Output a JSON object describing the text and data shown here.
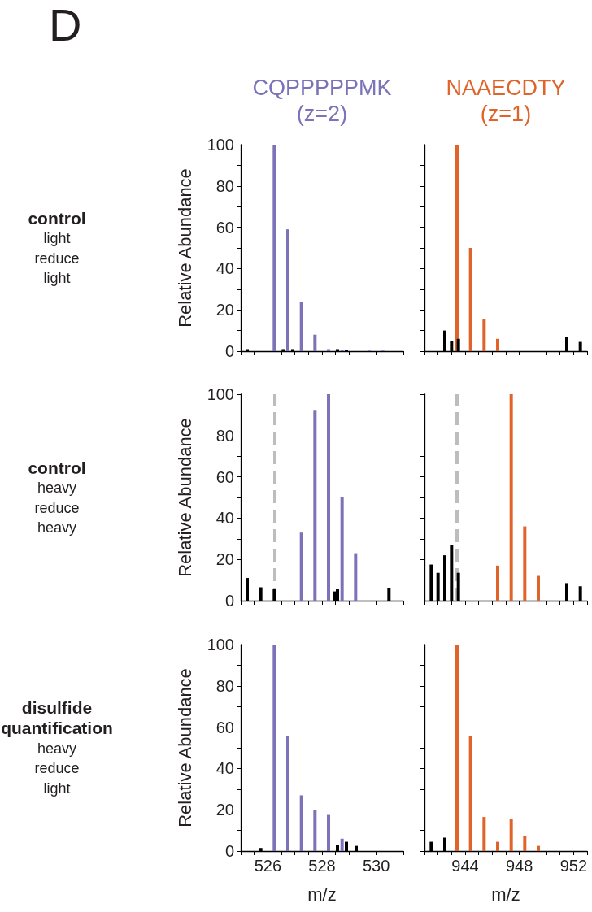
{
  "chart_data": [
    {
      "type": "bar",
      "title": "CQPPPPPMK\n(z=2)",
      "ylabel": "Relative Abundance",
      "annotations": [
        "D",
        "control\nlight\nreduce\nlight"
      ],
      "tick_labels": "y",
      "series": [
        {
          "color": "#7b72b8",
          "x": [
            526.24,
            526.74,
            527.24,
            527.74,
            528.24,
            528.74,
            529.74,
            530.24
          ],
          "values": [
            100,
            59,
            24,
            8,
            1,
            0.5,
            0.3,
            0.3
          ]
        },
        {
          "color": "#000000",
          "x": [
            525.24,
            526.57,
            526.92,
            528.57,
            528.9
          ],
          "values": [
            1,
            1,
            1,
            1,
            0.5
          ]
        }
      ],
      "xlim": [
        525,
        531
      ],
      "xticks": [
        {
          "value": 525,
          "label": null
        },
        {
          "value": 525.5,
          "label": null
        },
        526,
        {
          "value": 526.5,
          "label": null
        },
        {
          "value": 527,
          "label": null
        },
        {
          "value": 527.5,
          "label": null
        },
        528,
        {
          "value": 528.5,
          "label": null
        },
        {
          "value": 529,
          "label": null
        },
        {
          "value": 529.5,
          "label": null
        },
        530,
        {
          "value": 530.5,
          "label": null
        },
        {
          "value": 531,
          "label": null
        }
      ],
      "ylim": [
        0,
        100
      ],
      "yticks": [
        0,
        {
          "value": 10,
          "label": null
        },
        20,
        {
          "value": 30,
          "label": null
        },
        40,
        {
          "value": 50,
          "label": null
        },
        60,
        {
          "value": 70,
          "label": null
        },
        80,
        {
          "value": 90,
          "label": null
        },
        100
      ]
    },
    {
      "type": "bar",
      "title": "NAAECDTY\n(z=1)",
      "tick_labels": false,
      "series": [
        {
          "color": "#e0642a",
          "x": [
            943.4,
            944.4,
            945.4,
            946.4
          ],
          "values": [
            100,
            50,
            15.5,
            6
          ]
        },
        {
          "color": "#000000",
          "x": [
            942.5,
            943.0,
            943.5,
            951.5,
            952.5
          ],
          "values": [
            10,
            5,
            6,
            7,
            4.5
          ]
        }
      ],
      "xlim": [
        941,
        953
      ],
      "xticks": [
        {
          "value": 941,
          "label": null
        },
        {
          "value": 942,
          "label": null
        },
        {
          "value": 943,
          "label": null
        },
        944,
        {
          "value": 945,
          "label": null
        },
        {
          "value": 946,
          "label": null
        },
        {
          "value": 947,
          "label": null
        },
        948,
        {
          "value": 949,
          "label": null
        },
        {
          "value": 950,
          "label": null
        },
        {
          "value": 951,
          "label": null
        },
        952,
        {
          "value": 953,
          "label": null
        }
      ],
      "ylim": [
        0,
        100
      ],
      "yticks": [
        0,
        {
          "value": 10,
          "label": null
        },
        20,
        {
          "value": 30,
          "label": null
        },
        40,
        {
          "value": 50,
          "label": null
        },
        60,
        {
          "value": 70,
          "label": null
        },
        80,
        {
          "value": 90,
          "label": null
        },
        100
      ]
    },
    {
      "type": "bar",
      "ylabel": "Relative Abundance",
      "annotations": [
        "control\nheavy\nreduce\nheavy"
      ],
      "tick_labels": "y",
      "series": [
        {
          "color": "#7b72b8",
          "x": [
            527.24,
            527.74,
            528.24,
            528.74,
            529.24
          ],
          "values": [
            33,
            92,
            100,
            50,
            23
          ]
        },
        {
          "color": "#000000",
          "x": [
            525.24,
            525.74,
            526.24,
            528.47,
            528.57,
            530.47
          ],
          "values": [
            11,
            6.5,
            5.5,
            4.5,
            5.5,
            6
          ]
        }
      ],
      "ref_lines": [
        {
          "axis": "x",
          "value": 526.24,
          "color": "#bdbdbd",
          "line_style": "dashed"
        }
      ],
      "xlim": [
        525,
        531
      ],
      "xticks": [
        {
          "value": 525,
          "label": null
        },
        {
          "value": 525.5,
          "label": null
        },
        526,
        {
          "value": 526.5,
          "label": null
        },
        {
          "value": 527,
          "label": null
        },
        {
          "value": 527.5,
          "label": null
        },
        528,
        {
          "value": 528.5,
          "label": null
        },
        {
          "value": 529,
          "label": null
        },
        {
          "value": 529.5,
          "label": null
        },
        530,
        {
          "value": 530.5,
          "label": null
        },
        {
          "value": 531,
          "label": null
        }
      ],
      "ylim": [
        0,
        100
      ],
      "yticks": [
        0,
        {
          "value": 10,
          "label": null
        },
        20,
        {
          "value": 30,
          "label": null
        },
        40,
        {
          "value": 50,
          "label": null
        },
        60,
        {
          "value": 70,
          "label": null
        },
        80,
        {
          "value": 90,
          "label": null
        },
        100
      ]
    },
    {
      "type": "bar",
      "tick_labels": false,
      "series": [
        {
          "color": "#e0642a",
          "x": [
            946.4,
            947.4,
            948.4,
            949.4
          ],
          "values": [
            17,
            100,
            36,
            12
          ]
        },
        {
          "color": "#000000",
          "x": [
            941.5,
            942,
            942.5,
            943,
            943.5,
            951.5,
            952.5
          ],
          "values": [
            17.5,
            13.5,
            22,
            27,
            13.5,
            8.5,
            7
          ]
        }
      ],
      "ref_lines": [
        {
          "axis": "x",
          "value": 943.4,
          "color": "#bdbdbd",
          "line_style": "dashed"
        }
      ],
      "xlim": [
        941,
        953
      ],
      "xticks": [
        {
          "value": 941,
          "label": null
        },
        {
          "value": 942,
          "label": null
        },
        {
          "value": 943,
          "label": null
        },
        944,
        {
          "value": 945,
          "label": null
        },
        {
          "value": 946,
          "label": null
        },
        {
          "value": 947,
          "label": null
        },
        948,
        {
          "value": 949,
          "label": null
        },
        {
          "value": 950,
          "label": null
        },
        {
          "value": 951,
          "label": null
        },
        952,
        {
          "value": 953,
          "label": null
        }
      ],
      "ylim": [
        0,
        100
      ],
      "yticks": [
        0,
        {
          "value": 10,
          "label": null
        },
        20,
        {
          "value": 30,
          "label": null
        },
        40,
        {
          "value": 50,
          "label": null
        },
        60,
        {
          "value": 70,
          "label": null
        },
        80,
        {
          "value": 90,
          "label": null
        },
        100
      ]
    },
    {
      "type": "bar",
      "ylabel": "Relative Abundance",
      "xlabel": "m/z",
      "annotations": [
        "disulfide\nquantification\nheavy\nreduce\nlight"
      ],
      "series": [
        {
          "color": "#7b72b8",
          "x": [
            526.24,
            526.74,
            527.24,
            527.74,
            528.24,
            528.74
          ],
          "values": [
            100,
            55.5,
            27,
            20,
            17.5,
            6
          ]
        },
        {
          "color": "#000000",
          "x": [
            525.74,
            528.57,
            528.9,
            529.26
          ],
          "values": [
            1.5,
            3,
            4.5,
            2.5
          ]
        }
      ],
      "xlim": [
        525,
        531
      ],
      "xticks": [
        {
          "value": 525,
          "label": null
        },
        {
          "value": 525.5,
          "label": null
        },
        526,
        {
          "value": 526.5,
          "label": null
        },
        {
          "value": 527,
          "label": null
        },
        {
          "value": 527.5,
          "label": null
        },
        528,
        {
          "value": 528.5,
          "label": null
        },
        {
          "value": 529,
          "label": null
        },
        {
          "value": 529.5,
          "label": null
        },
        530,
        {
          "value": 530.5,
          "label": null
        },
        {
          "value": 531,
          "label": null
        }
      ],
      "ylim": [
        0,
        100
      ],
      "yticks": [
        0,
        {
          "value": 10,
          "label": null
        },
        20,
        {
          "value": 30,
          "label": null
        },
        40,
        {
          "value": 50,
          "label": null
        },
        60,
        {
          "value": 70,
          "label": null
        },
        80,
        {
          "value": 90,
          "label": null
        },
        100
      ]
    },
    {
      "type": "bar",
      "xlabel": "m/z",
      "tick_labels": "x",
      "series": [
        {
          "color": "#e0642a",
          "x": [
            943.4,
            944.4,
            945.4,
            946.4,
            947.4,
            948.4,
            949.4
          ],
          "values": [
            100,
            55.5,
            16.5,
            4.5,
            15.5,
            7.5,
            2.5
          ]
        },
        {
          "color": "#000000",
          "x": [
            941.5,
            942.5
          ],
          "values": [
            4.5,
            6.5
          ]
        }
      ],
      "xlim": [
        941,
        953
      ],
      "xticks": [
        {
          "value": 941,
          "label": null
        },
        {
          "value": 942,
          "label": null
        },
        {
          "value": 943,
          "label": null
        },
        944,
        {
          "value": 945,
          "label": null
        },
        {
          "value": 946,
          "label": null
        },
        {
          "value": 947,
          "label": null
        },
        948,
        {
          "value": 949,
          "label": null
        },
        {
          "value": 950,
          "label": null
        },
        {
          "value": 951,
          "label": null
        },
        952,
        {
          "value": 953,
          "label": null
        }
      ],
      "ylim": [
        0,
        100
      ],
      "yticks": [
        0,
        {
          "value": 10,
          "label": null
        },
        20,
        {
          "value": 30,
          "label": null
        },
        40,
        {
          "value": 50,
          "label": null
        },
        60,
        {
          "value": 70,
          "label": null
        },
        80,
        {
          "value": 90,
          "label": null
        },
        100
      ]
    }
  ]
}
